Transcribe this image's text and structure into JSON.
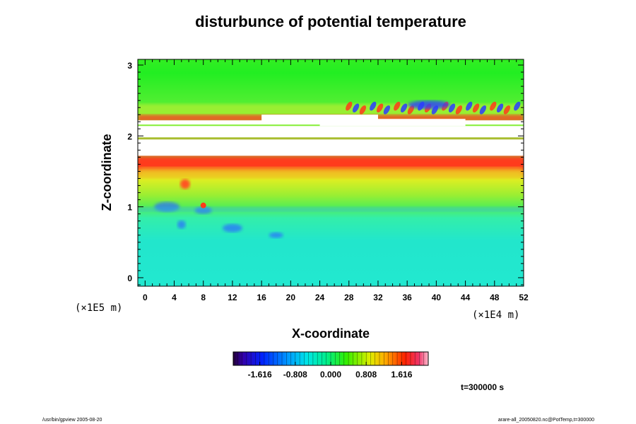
{
  "chart_data": {
    "type": "heatmap",
    "title": "disturbunce of potential temperature",
    "xlabel": "X-coordinate",
    "ylabel": "Z-coordinate",
    "x_scale_label": "(×1E4 m)",
    "y_scale_label": "(×1E5 m)",
    "x_ticks": [
      "0",
      "4",
      "8",
      "12",
      "16",
      "20",
      "24",
      "28",
      "32",
      "36",
      "40",
      "44",
      "48",
      "52"
    ],
    "y_ticks": [
      "0",
      "1",
      "2",
      "3"
    ],
    "xlim": [
      -1,
      52
    ],
    "ylim": [
      -0.12,
      3.08
    ],
    "colorbar": {
      "ticks": [
        "-1.616",
        "-0.808",
        "0.000",
        "0.808",
        "1.616"
      ],
      "range": [
        -2.222,
        2.222
      ]
    },
    "time_annotation": "t=300000 s",
    "colors": {
      "background_low": "#22e6d2",
      "background_mid": "#44ee44",
      "positive": "#ff3a1a",
      "negative": "#2a3cff",
      "missing": "#ffffff"
    }
  },
  "footer": {
    "left": "/usr/bin/gpview 2005-08-20",
    "right": "arare-all_20050820.nc@PotTemp,t=300000"
  }
}
